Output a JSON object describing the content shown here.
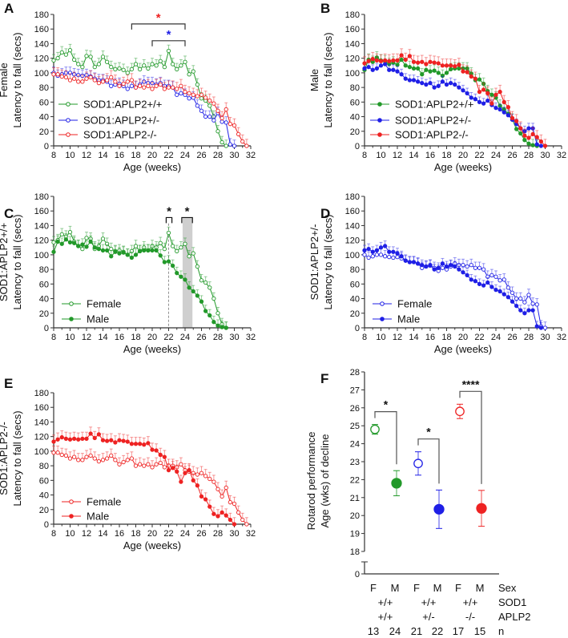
{
  "chart_data": {
    "type": "line",
    "datasets": {
      "wt_F": {
        "x_start": 8,
        "x_step": 0.5,
        "sem": 8,
        "y": [
          117,
          120,
          128,
          125,
          131,
          118,
          112,
          108,
          123,
          122,
          108,
          112,
          122,
          115,
          108,
          105,
          106,
          104,
          100,
          105,
          112,
          105,
          110,
          106,
          112,
          110,
          116,
          108,
          130,
          112,
          105,
          110,
          115,
          98,
          102,
          84,
          65,
          62,
          55,
          40,
          20,
          5,
          0
        ]
      },
      "het_F": {
        "x_start": 8,
        "x_step": 0.5,
        "sem": 8,
        "y": [
          100,
          96,
          98,
          100,
          100,
          98,
          97,
          96,
          97,
          95,
          92,
          90,
          90,
          88,
          82,
          84,
          85,
          82,
          78,
          82,
          80,
          84,
          88,
          86,
          86,
          84,
          86,
          82,
          82,
          80,
          70,
          72,
          70,
          65,
          66,
          55,
          48,
          40,
          40,
          35,
          45,
          33,
          32,
          2,
          0
        ]
      },
      "ko_F": {
        "x_start": 8,
        "x_step": 0.5,
        "sem": 9,
        "y": [
          98,
          98,
          95,
          94,
          90,
          92,
          88,
          88,
          92,
          94,
          90,
          86,
          88,
          90,
          94,
          88,
          82,
          85,
          88,
          90,
          80,
          82,
          80,
          82,
          78,
          82,
          84,
          78,
          80,
          80,
          78,
          82,
          74,
          72,
          70,
          68,
          70,
          66,
          62,
          58,
          48,
          38,
          50,
          30,
          28,
          16,
          6,
          0
        ]
      },
      "wt_M": {
        "x_start": 8,
        "x_step": 0.5,
        "sem": 8,
        "y": [
          104,
          118,
          115,
          121,
          117,
          116,
          112,
          114,
          111,
          118,
          110,
          108,
          106,
          106,
          98,
          104,
          102,
          103,
          100,
          96,
          100,
          105,
          106,
          106,
          106,
          106,
          99,
          90,
          91,
          85,
          75,
          70,
          66,
          55,
          50,
          44,
          36,
          23,
          17,
          8,
          3,
          1,
          0
        ]
      },
      "het_M": {
        "x_start": 8,
        "x_step": 0.5,
        "sem": 7,
        "y": [
          106,
          108,
          104,
          106,
          110,
          112,
          104,
          104,
          102,
          98,
          92,
          90,
          90,
          88,
          86,
          84,
          86,
          80,
          82,
          88,
          84,
          86,
          84,
          80,
          76,
          72,
          66,
          64,
          60,
          58,
          62,
          56,
          52,
          50,
          46,
          42,
          36,
          30,
          24,
          20,
          24,
          24,
          2,
          0
        ]
      },
      "ko_M": {
        "x_start": 8,
        "x_step": 0.5,
        "sem": 9,
        "y": [
          113,
          116,
          119,
          117,
          116,
          117,
          116,
          117,
          117,
          124,
          118,
          123,
          115,
          114,
          115,
          112,
          115,
          114,
          113,
          110,
          110,
          110,
          109,
          111,
          102,
          101,
          95,
          92,
          74,
          77,
          72,
          58,
          70,
          74,
          60,
          53,
          38,
          34,
          24,
          14,
          11,
          16,
          12,
          6,
          0
        ]
      }
    },
    "colors": {
      "wt": "#22992a",
      "het": "#1f1fe6",
      "ko": "#ee2222"
    },
    "panels": [
      {
        "letter": "A",
        "ylabel": [
          "Female",
          "Latency to fall (secs)"
        ],
        "xlabel": "Age (weeks)",
        "xlim": [
          8,
          32
        ],
        "ylim": [
          0,
          180
        ],
        "xticks": [
          "8",
          "10",
          "12",
          "14",
          "16",
          "18",
          "20",
          "22",
          "24",
          "26",
          "28",
          "30",
          "32"
        ],
        "yticks": [
          "0",
          "20",
          "40",
          "60",
          "80",
          "100",
          "120",
          "140",
          "160",
          "180"
        ],
        "series": [
          {
            "name": "SOD1:APLP2+/+",
            "data": "wt_F",
            "color": "wt",
            "filled": false
          },
          {
            "name": "SOD1:APLP2+/-",
            "data": "het_F",
            "color": "het",
            "filled": false
          },
          {
            "name": "SOD1:APLP2-/-",
            "data": "ko_F",
            "color": "ko",
            "filled": false
          }
        ],
        "brackets": [
          {
            "x": [
              17.5,
              24
            ],
            "y": 167,
            "label": "*",
            "color": "ko"
          },
          {
            "x": [
              20,
              24
            ],
            "y": 144,
            "label": "*",
            "color": "het"
          }
        ]
      },
      {
        "letter": "B",
        "ylabel": [
          "Male",
          "Latency to fall (secs)"
        ],
        "xlabel": "Age (weeks)",
        "xlim": [
          8,
          32
        ],
        "ylim": [
          0,
          180
        ],
        "xticks": [
          "8",
          "10",
          "12",
          "14",
          "16",
          "18",
          "20",
          "22",
          "24",
          "26",
          "28",
          "30",
          "32"
        ],
        "yticks": [
          "0",
          "20",
          "40",
          "60",
          "80",
          "100",
          "120",
          "140",
          "160",
          "180"
        ],
        "series": [
          {
            "name": "SOD1:APLP2+/+",
            "data": "wt_M",
            "color": "wt",
            "filled": true
          },
          {
            "name": "SOD1:APLP2+/-",
            "data": "het_M",
            "color": "het",
            "filled": true
          },
          {
            "name": "SOD1:APLP2-/-",
            "data": "ko_M",
            "color": "ko",
            "filled": true
          }
        ],
        "brackets": []
      },
      {
        "letter": "C",
        "ylabel": [
          "SOD1:APLP2+/+",
          "Latency to fall (secs)"
        ],
        "xlabel": "Age (weeks)",
        "xlim": [
          8,
          32
        ],
        "ylim": [
          0,
          180
        ],
        "xticks": [
          "8",
          "10",
          "12",
          "14",
          "16",
          "18",
          "20",
          "22",
          "24",
          "26",
          "28",
          "30",
          "32"
        ],
        "yticks": [
          "0",
          "20",
          "40",
          "60",
          "80",
          "100",
          "120",
          "140",
          "160",
          "180"
        ],
        "series": [
          {
            "name": "Female",
            "data": "wt_F",
            "color": "wt",
            "filled": false
          },
          {
            "name": "Male",
            "data": "wt_M",
            "color": "wt",
            "filled": true
          }
        ],
        "brackets": [
          {
            "x": [
              21.7,
              22.4
            ],
            "y": 151,
            "label": "*",
            "color": "black"
          },
          {
            "x": [
              23.6,
              24.9
            ],
            "y": 151,
            "label": "*",
            "color": "black"
          }
        ],
        "shaded_band": [
          23.7,
          24.9
        ],
        "reference_x": 22
      },
      {
        "letter": "D",
        "ylabel": [
          "SOD1:APLP2+/-",
          "Latency to fall (secs)"
        ],
        "xlabel": "Age (weeks)",
        "xlim": [
          8,
          32
        ],
        "ylim": [
          0,
          180
        ],
        "xticks": [
          "8",
          "10",
          "12",
          "14",
          "16",
          "18",
          "20",
          "22",
          "24",
          "26",
          "28",
          "30",
          "32"
        ],
        "yticks": [
          "0",
          "20",
          "40",
          "60",
          "80",
          "100",
          "120",
          "140",
          "160",
          "180"
        ],
        "series": [
          {
            "name": "Female",
            "data": "het_F",
            "color": "het",
            "filled": false
          },
          {
            "name": "Male",
            "data": "het_M",
            "color": "het",
            "filled": true
          }
        ],
        "brackets": []
      },
      {
        "letter": "E",
        "ylabel": [
          "SOD1:APLP2-/-",
          "Latency to fall (secs)"
        ],
        "xlabel": "Age (weeks)",
        "xlim": [
          8,
          32
        ],
        "ylim": [
          0,
          180
        ],
        "xticks": [
          "8",
          "10",
          "12",
          "14",
          "16",
          "18",
          "20",
          "22",
          "24",
          "26",
          "28",
          "30",
          "32"
        ],
        "yticks": [
          "0",
          "20",
          "40",
          "60",
          "80",
          "100",
          "120",
          "140",
          "160",
          "180"
        ],
        "series": [
          {
            "name": "Female",
            "data": "ko_F",
            "color": "ko",
            "filled": false
          },
          {
            "name": "Male",
            "data": "ko_M",
            "color": "ko",
            "filled": true
          }
        ],
        "brackets": []
      }
    ],
    "panel_f": {
      "type": "scatter",
      "letter": "F",
      "ylabel": [
        "Rotarod performance",
        "Age (wks) of decline"
      ],
      "yticks": [
        "0",
        "18",
        "19",
        "20",
        "21",
        "22",
        "23",
        "24",
        "25",
        "26",
        "27",
        "28"
      ],
      "ylim_broken": [
        [
          0,
          0
        ],
        [
          18,
          28
        ]
      ],
      "groups": [
        {
          "sex": "F",
          "color": "wt",
          "filled": false,
          "mean": 24.8,
          "sem": 0.27
        },
        {
          "sex": "M",
          "color": "wt",
          "filled": true,
          "mean": 21.8,
          "sem": 0.7
        },
        {
          "sex": "F",
          "color": "het",
          "filled": false,
          "mean": 22.9,
          "sem": 0.65
        },
        {
          "sex": "M",
          "color": "het",
          "filled": true,
          "mean": 20.35,
          "sem": 1.07
        },
        {
          "sex": "F",
          "color": "ko",
          "filled": false,
          "mean": 25.8,
          "sem": 0.4
        },
        {
          "sex": "M",
          "color": "ko",
          "filled": true,
          "mean": 20.4,
          "sem": 1.0
        }
      ],
      "comparisons": [
        {
          "pair": [
            0,
            1
          ],
          "label": "*"
        },
        {
          "pair": [
            2,
            3
          ],
          "label": "*"
        },
        {
          "pair": [
            4,
            5
          ],
          "label": "****"
        }
      ],
      "table": {
        "row_labels": [
          "Sex",
          "SOD1",
          "APLP2",
          "n"
        ],
        "sex": [
          "F",
          "M",
          "F",
          "M",
          "F",
          "M"
        ],
        "sod1": [
          "+/+",
          "+/+",
          "+/+"
        ],
        "aplp2": [
          "+/+",
          "+/-",
          "-/-"
        ],
        "n": [
          "13",
          "24",
          "21",
          "22",
          "17",
          "15"
        ]
      }
    }
  }
}
